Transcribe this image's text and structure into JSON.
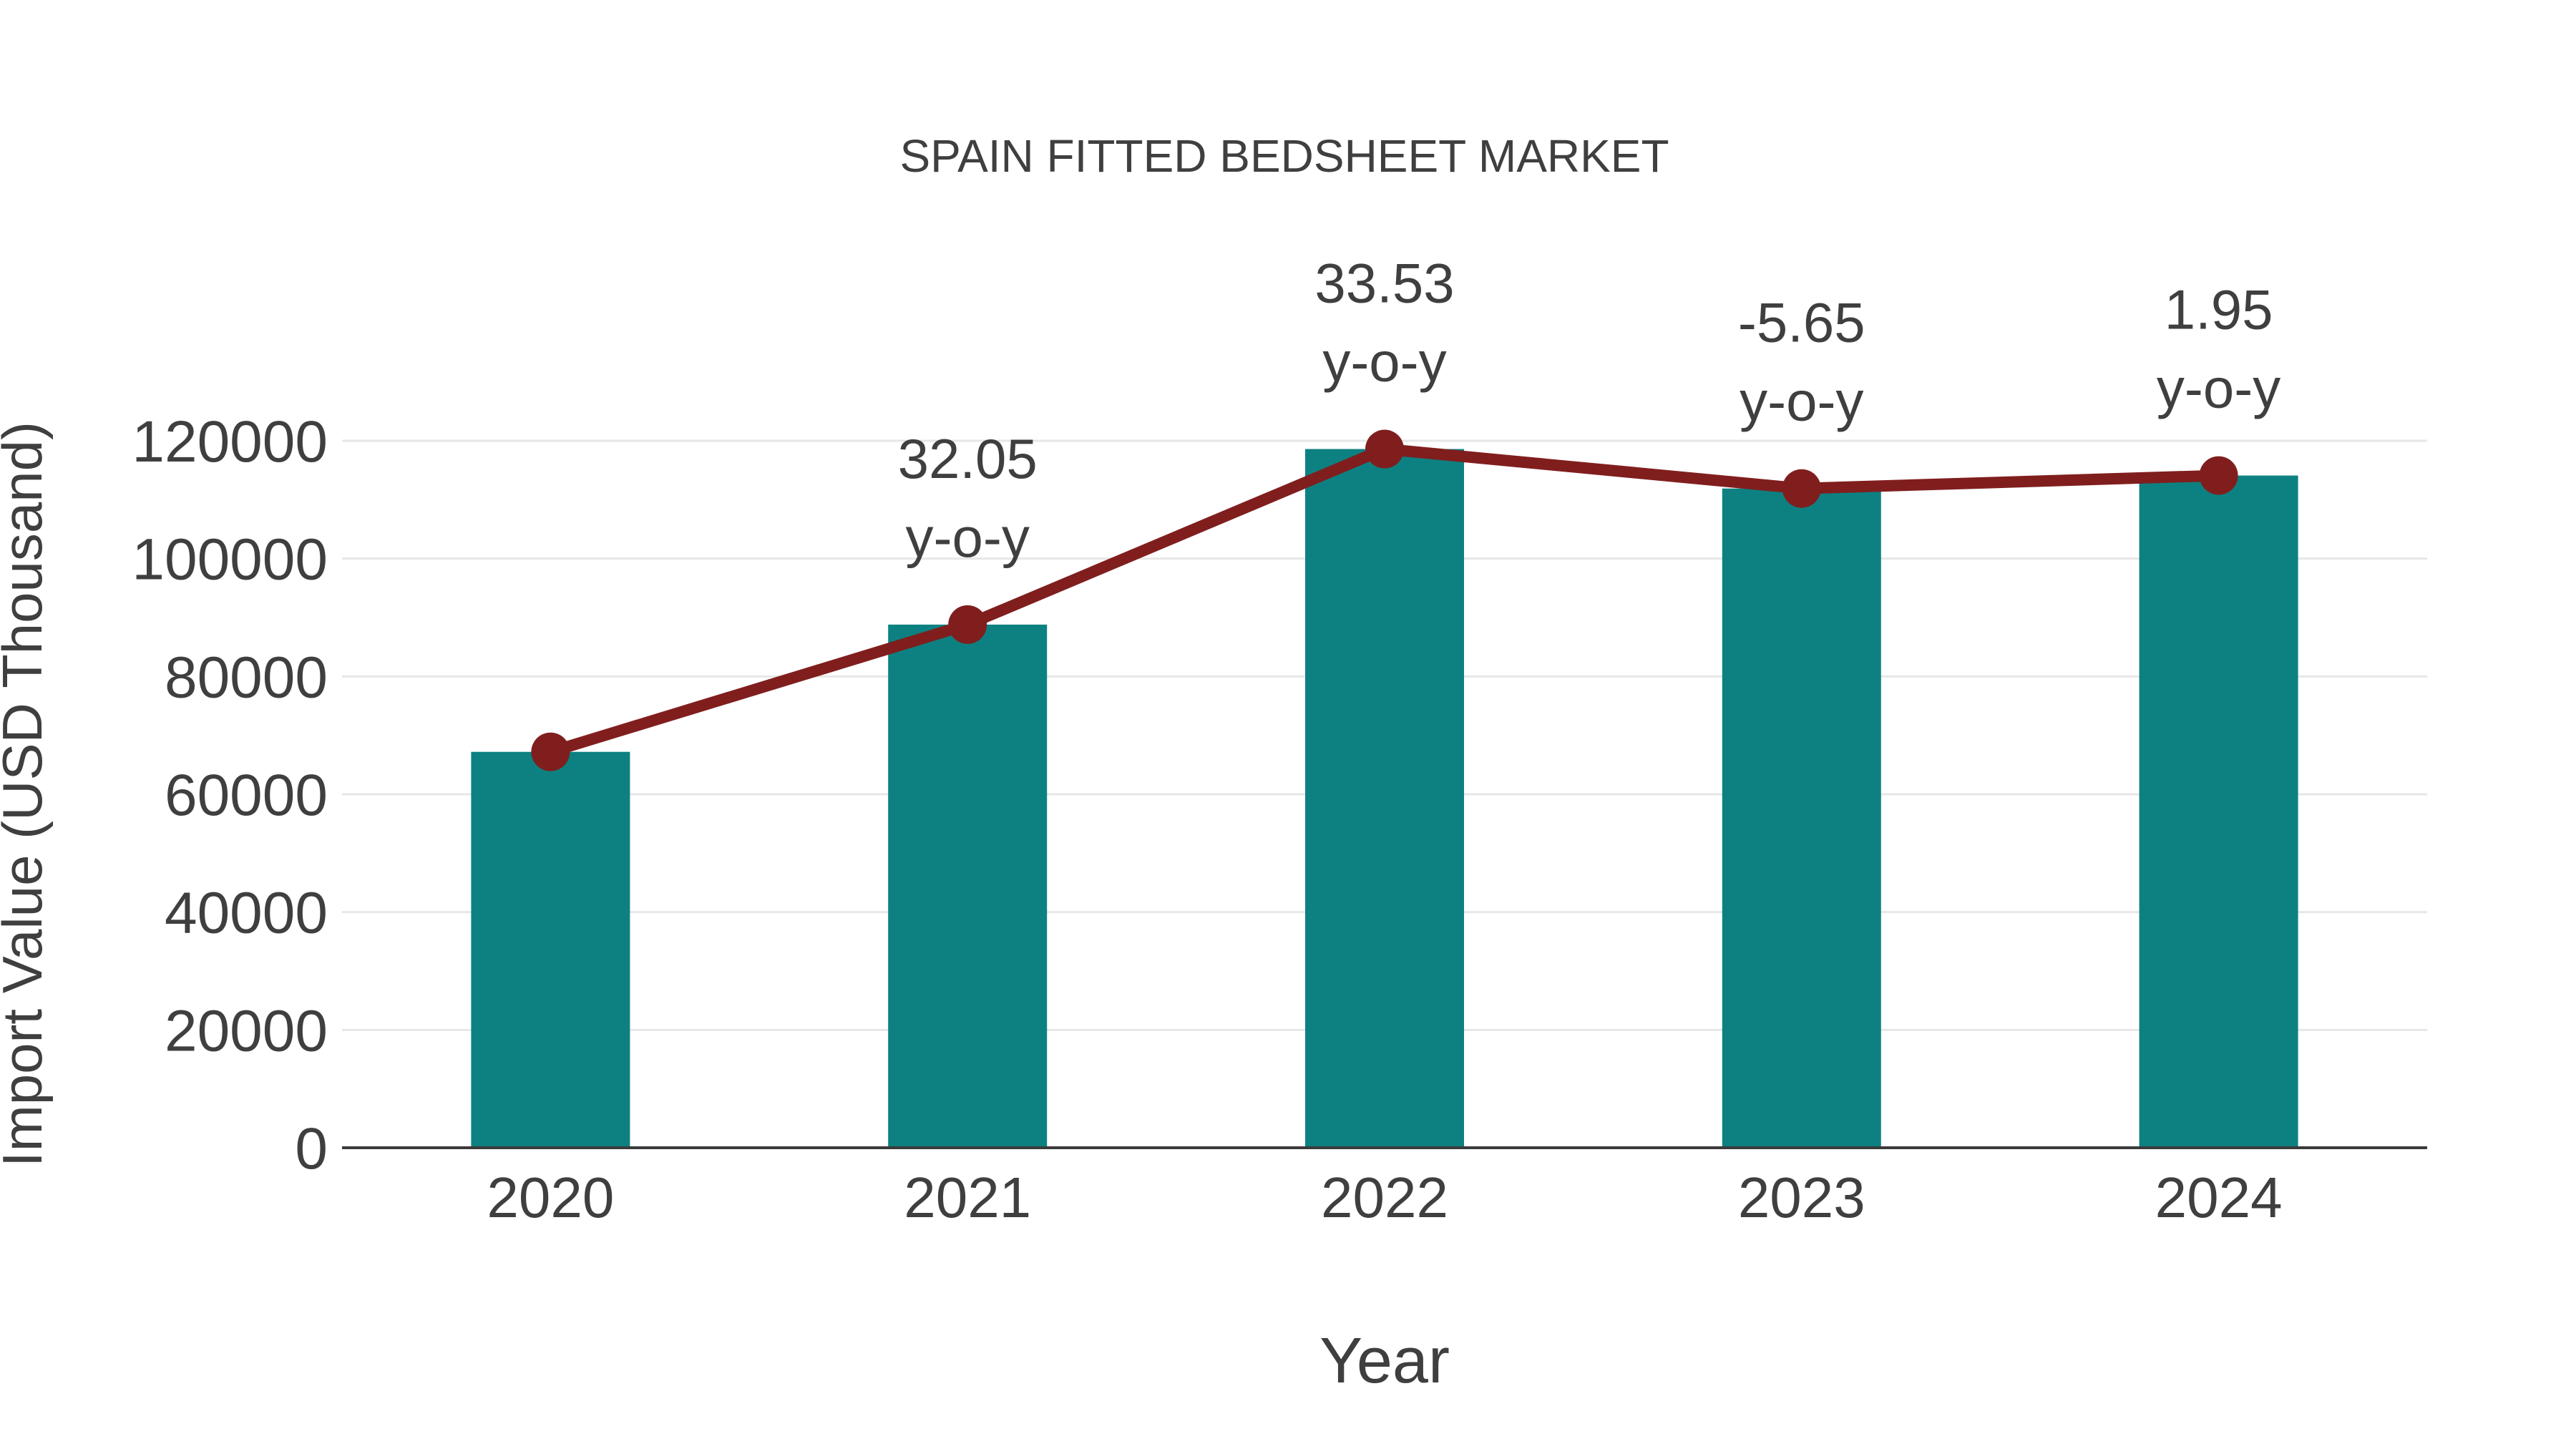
{
  "chart_data": {
    "type": "bar",
    "title": "SPAIN FITTED BEDSHEET MARKET",
    "xlabel": "Year",
    "ylabel": "Import Value (USD Thousand)",
    "categories": [
      "2020",
      "2021",
      "2022",
      "2023",
      "2024"
    ],
    "values": [
      67200,
      88800,
      118600,
      111900,
      114100
    ],
    "y_ticks": [
      0,
      20000,
      40000,
      60000,
      80000,
      100000,
      120000
    ],
    "ylim": [
      0,
      131000
    ],
    "grid": "horizontal",
    "legend": "none",
    "line_overlay": {
      "name": "y-o-y growth",
      "plotted_at_values": [
        67200,
        88800,
        118600,
        111900,
        114100
      ],
      "growth_labels": [
        {
          "index": 1,
          "text": "32.05",
          "sub": "y-o-y"
        },
        {
          "index": 2,
          "text": "33.53",
          "sub": "y-o-y"
        },
        {
          "index": 3,
          "text": "-5.65",
          "sub": "y-o-y"
        },
        {
          "index": 4,
          "text": "1.95",
          "sub": "y-o-y"
        }
      ]
    },
    "colors": {
      "bar": "#0d8181",
      "line": "#801e1e",
      "marker": "#801e1e",
      "text": "#3f3f3f",
      "grid": "#e7e7e7",
      "axis": "#3b3b3b",
      "background": "#ffffff"
    }
  }
}
